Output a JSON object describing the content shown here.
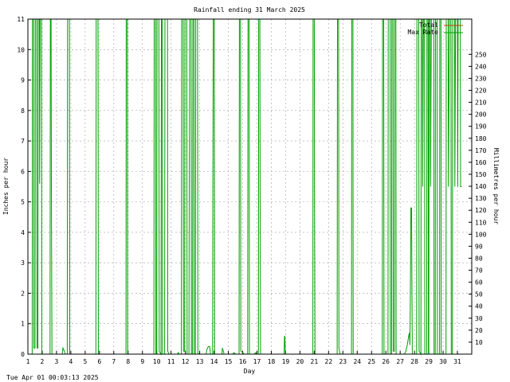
{
  "chart_data": {
    "type": "line",
    "title": "Rainfall ending 31 March 2025",
    "xlabel": "Day",
    "ylabel": "Inches per hour",
    "y2label": "Millimetres per hour",
    "footer": "Tue Apr 01 00:03:13 2025",
    "xlim": [
      1,
      32
    ],
    "ylim": [
      0,
      11
    ],
    "y2lim": [
      0,
      279.4
    ],
    "x_ticks": [
      "1",
      "2",
      "3",
      "4",
      "5",
      "6",
      "7",
      "8",
      "9",
      "10",
      "11",
      "12",
      "13",
      "14",
      "15",
      "16",
      "17",
      "18",
      "19",
      "20",
      "21",
      "22",
      "23",
      "24",
      "25",
      "26",
      "27",
      "28",
      "29",
      "30",
      "31"
    ],
    "y_ticks": [
      "0",
      "1",
      "2",
      "3",
      "4",
      "5",
      "6",
      "7",
      "8",
      "9",
      "10",
      "11"
    ],
    "y2_ticks": [
      "10",
      "20",
      "30",
      "40",
      "50",
      "60",
      "70",
      "80",
      "90",
      "100",
      "110",
      "120",
      "130",
      "140",
      "150",
      "160",
      "170",
      "180",
      "190",
      "200",
      "210",
      "220",
      "230",
      "240",
      "250"
    ],
    "grid": true,
    "legend_position": "top-right",
    "colors": {
      "total": "#c04000",
      "max_rate": "#00a000",
      "grid": "#a0a0a0"
    },
    "series": [
      {
        "name": "Total",
        "values": []
      },
      {
        "name": "Max Rate",
        "points": [
          [
            1.0,
            0
          ],
          [
            1.3,
            0
          ],
          [
            1.32,
            11
          ],
          [
            1.4,
            11
          ],
          [
            1.42,
            0.2
          ],
          [
            1.5,
            0.2
          ],
          [
            1.52,
            11
          ],
          [
            1.62,
            11
          ],
          [
            1.64,
            0.2
          ],
          [
            1.7,
            0.2
          ],
          [
            1.72,
            11
          ],
          [
            1.8,
            11
          ],
          [
            1.82,
            5.6
          ],
          [
            1.85,
            11
          ],
          [
            1.95,
            11
          ],
          [
            1.97,
            0
          ],
          [
            2.55,
            0
          ],
          [
            2.57,
            11
          ],
          [
            2.62,
            11
          ],
          [
            2.64,
            5.5
          ],
          [
            2.68,
            0
          ],
          [
            3.4,
            0
          ],
          [
            3.45,
            0.2
          ],
          [
            3.55,
            0.1
          ],
          [
            3.6,
            0
          ],
          [
            3.75,
            0
          ],
          [
            3.77,
            11
          ],
          [
            3.9,
            11
          ],
          [
            3.92,
            0
          ],
          [
            5.75,
            0
          ],
          [
            5.77,
            11
          ],
          [
            5.9,
            11
          ],
          [
            5.92,
            0
          ],
          [
            7.85,
            0
          ],
          [
            7.87,
            11
          ],
          [
            7.95,
            11
          ],
          [
            7.97,
            0
          ],
          [
            9.8,
            0
          ],
          [
            9.82,
            11
          ],
          [
            9.92,
            11
          ],
          [
            9.94,
            0
          ],
          [
            10.0,
            0
          ],
          [
            10.02,
            11
          ],
          [
            10.15,
            11
          ],
          [
            10.17,
            0.1
          ],
          [
            10.3,
            0
          ],
          [
            10.32,
            11
          ],
          [
            10.38,
            11
          ],
          [
            10.4,
            0
          ],
          [
            10.55,
            0
          ],
          [
            10.57,
            11
          ],
          [
            10.75,
            11
          ],
          [
            10.77,
            0.1
          ],
          [
            10.85,
            0
          ],
          [
            11.45,
            0
          ],
          [
            11.5,
            0.05
          ],
          [
            11.55,
            0
          ],
          [
            11.72,
            0
          ],
          [
            11.74,
            11
          ],
          [
            11.85,
            11
          ],
          [
            11.87,
            0.1
          ],
          [
            11.95,
            0.1
          ],
          [
            11.97,
            11
          ],
          [
            12.1,
            11
          ],
          [
            12.12,
            0
          ],
          [
            12.25,
            0
          ],
          [
            12.27,
            5.5
          ],
          [
            12.3,
            11
          ],
          [
            12.4,
            11
          ],
          [
            12.42,
            0
          ],
          [
            12.5,
            0
          ],
          [
            12.52,
            11
          ],
          [
            12.6,
            11
          ],
          [
            12.62,
            0
          ],
          [
            12.7,
            0
          ],
          [
            12.72,
            11
          ],
          [
            12.85,
            11
          ],
          [
            12.87,
            0.05
          ],
          [
            12.92,
            0
          ],
          [
            13.45,
            0
          ],
          [
            13.5,
            0.15
          ],
          [
            13.6,
            0.25
          ],
          [
            13.7,
            0.25
          ],
          [
            13.75,
            0
          ],
          [
            13.9,
            0
          ],
          [
            13.92,
            5.5
          ],
          [
            13.95,
            11
          ],
          [
            14.02,
            11
          ],
          [
            14.04,
            0
          ],
          [
            14.55,
            0
          ],
          [
            14.58,
            0.2
          ],
          [
            14.65,
            0.1
          ],
          [
            14.7,
            0
          ],
          [
            15.3,
            0
          ],
          [
            15.4,
            0.05
          ],
          [
            15.5,
            0
          ],
          [
            15.75,
            0
          ],
          [
            15.77,
            11
          ],
          [
            15.85,
            11
          ],
          [
            15.87,
            0.1
          ],
          [
            16.0,
            0.05
          ],
          [
            16.1,
            0
          ],
          [
            16.35,
            0
          ],
          [
            16.37,
            11
          ],
          [
            16.45,
            11
          ],
          [
            16.47,
            0
          ],
          [
            16.8,
            0
          ],
          [
            16.9,
            0.05
          ],
          [
            17.0,
            0
          ],
          [
            17.1,
            0
          ],
          [
            17.12,
            11
          ],
          [
            17.2,
            11
          ],
          [
            17.22,
            5.5
          ],
          [
            17.25,
            0
          ],
          [
            18.9,
            0
          ],
          [
            18.92,
            0.6
          ],
          [
            18.95,
            0.55
          ],
          [
            18.98,
            0
          ],
          [
            20.9,
            0
          ],
          [
            20.92,
            11
          ],
          [
            21.0,
            11
          ],
          [
            21.02,
            5.5
          ],
          [
            21.05,
            0
          ],
          [
            22.6,
            0
          ],
          [
            22.62,
            11
          ],
          [
            22.7,
            11
          ],
          [
            22.72,
            0.2
          ],
          [
            22.8,
            0
          ],
          [
            23.6,
            0
          ],
          [
            23.62,
            11
          ],
          [
            23.7,
            11
          ],
          [
            23.72,
            0
          ],
          [
            25.75,
            0
          ],
          [
            25.77,
            11
          ],
          [
            25.85,
            11
          ],
          [
            25.87,
            0
          ],
          [
            26.15,
            0
          ],
          [
            26.17,
            11
          ],
          [
            26.3,
            11
          ],
          [
            26.32,
            0
          ],
          [
            26.4,
            0
          ],
          [
            26.42,
            11
          ],
          [
            26.5,
            11
          ],
          [
            26.52,
            0.1
          ],
          [
            26.6,
            0.1
          ],
          [
            26.62,
            11
          ],
          [
            26.7,
            11
          ],
          [
            26.72,
            0
          ],
          [
            27.3,
            0
          ],
          [
            27.4,
            0.1
          ],
          [
            27.5,
            0.3
          ],
          [
            27.6,
            0.6
          ],
          [
            27.65,
            0.7
          ],
          [
            27.68,
            0.3
          ],
          [
            27.72,
            2.4
          ],
          [
            27.75,
            4.8
          ],
          [
            27.8,
            4.8
          ],
          [
            27.82,
            2.5
          ],
          [
            27.85,
            0
          ],
          [
            28.15,
            0
          ],
          [
            28.17,
            11
          ],
          [
            28.3,
            11
          ],
          [
            28.32,
            0.1
          ],
          [
            28.45,
            0
          ],
          [
            28.47,
            11
          ],
          [
            28.55,
            11
          ],
          [
            28.57,
            5.5
          ],
          [
            28.62,
            11
          ],
          [
            28.7,
            11
          ],
          [
            28.72,
            0
          ],
          [
            28.85,
            0
          ],
          [
            28.87,
            11
          ],
          [
            28.95,
            11
          ],
          [
            28.97,
            0
          ],
          [
            29.0,
            0
          ],
          [
            29.02,
            11
          ],
          [
            29.1,
            11
          ],
          [
            29.12,
            5.5
          ],
          [
            29.18,
            11
          ],
          [
            29.25,
            11
          ],
          [
            29.27,
            11
          ],
          [
            29.35,
            11
          ],
          [
            29.37,
            0
          ],
          [
            29.45,
            0
          ],
          [
            29.47,
            11
          ],
          [
            29.58,
            11
          ],
          [
            29.6,
            0
          ],
          [
            29.75,
            0
          ],
          [
            29.77,
            11
          ],
          [
            29.85,
            11
          ],
          [
            29.87,
            0
          ],
          [
            30.2,
            0
          ],
          [
            30.22,
            11
          ],
          [
            30.35,
            11
          ],
          [
            30.37,
            5.5
          ],
          [
            30.45,
            11
          ],
          [
            30.55,
            11
          ],
          [
            30.57,
            0
          ],
          [
            30.65,
            0
          ],
          [
            30.67,
            11
          ],
          [
            30.8,
            11
          ],
          [
            30.82,
            5.5
          ],
          [
            30.87,
            11
          ],
          [
            31.0,
            11
          ],
          [
            31.02,
            5.5
          ],
          [
            31.05,
            11
          ],
          [
            31.2,
            11
          ],
          [
            31.22,
            5.5
          ],
          [
            31.3,
            5.5
          ]
        ]
      }
    ]
  }
}
